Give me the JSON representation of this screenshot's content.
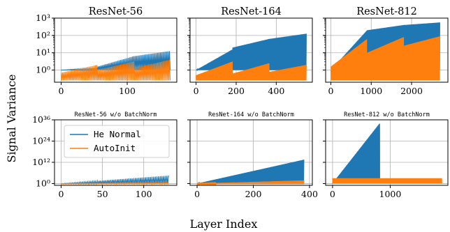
{
  "figure": {
    "ylabel": "Signal Variance",
    "xlabel": "Layer Index"
  },
  "legend": {
    "entries": [
      {
        "label": "He Normal",
        "color": "#1f77b4"
      },
      {
        "label": "AutoInit",
        "color": "#ff7f0e"
      }
    ]
  },
  "colors": {
    "he_normal": "#1f77b4",
    "autoinit": "#ff7f0e",
    "grid": "#b0b0b0"
  },
  "chart_data": [
    {
      "type": "line",
      "title": "ResNet-56",
      "yscale": "log",
      "xlim": [
        -10,
        175
      ],
      "ylim_exp": [
        -0.7,
        3
      ],
      "xticks": [
        0,
        100
      ],
      "yticks": [
        {
          "exp": 0,
          "label": "10⁰"
        },
        {
          "exp": 1,
          "label": "10¹"
        },
        {
          "exp": 2,
          "label": "10²"
        },
        {
          "exp": 3,
          "label": "10³"
        }
      ],
      "series": [
        {
          "name": "He Normal",
          "layers": 165,
          "stages": [
            [
              0,
              55,
              0.0,
              0.15
            ],
            [
              55,
              110,
              0.2,
              0.8
            ],
            [
              110,
              165,
              0.8,
              1.1
            ]
          ],
          "floor_exp": 0.0,
          "period": 3
        },
        {
          "name": "AutoInit",
          "layers": 165,
          "stages": [
            [
              0,
              55,
              -0.15,
              0.3
            ],
            [
              55,
              110,
              0.0,
              0.5
            ],
            [
              110,
              165,
              0.1,
              0.6
            ]
          ],
          "floor_exp": -0.6,
          "period": 3
        }
      ]
    },
    {
      "type": "line",
      "title": "ResNet-164",
      "yscale": "log",
      "xlim": [
        -30,
        580
      ],
      "ylim_exp": [
        -0.7,
        3
      ],
      "xticks": [
        0,
        200,
        400
      ],
      "yticks": [
        {
          "exp": 0,
          "label": ""
        },
        {
          "exp": 1,
          "label": ""
        },
        {
          "exp": 2,
          "label": ""
        },
        {
          "exp": 3,
          "label": ""
        }
      ],
      "series": [
        {
          "name": "He Normal",
          "layers": 550,
          "stages": [
            [
              0,
              183,
              0.0,
              1.2
            ],
            [
              183,
              366,
              1.3,
              1.8
            ],
            [
              366,
              550,
              1.8,
              2.1
            ]
          ],
          "floor_exp": 0.0,
          "period": 6
        },
        {
          "name": "AutoInit",
          "layers": 550,
          "stages": [
            [
              0,
              183,
              -0.3,
              0.5
            ],
            [
              183,
              366,
              -0.2,
              0.4
            ],
            [
              366,
              550,
              -0.1,
              0.3
            ]
          ],
          "floor_exp": -0.6,
          "period": 6
        }
      ]
    },
    {
      "type": "line",
      "title": "ResNet-812",
      "yscale": "log",
      "xlim": [
        -130,
        2900
      ],
      "ylim_exp": [
        -0.7,
        3
      ],
      "xticks": [
        0,
        1000,
        2000
      ],
      "yticks": [
        {
          "exp": 0,
          "label": ""
        },
        {
          "exp": 1,
          "label": ""
        },
        {
          "exp": 2,
          "label": ""
        },
        {
          "exp": 3,
          "label": ""
        }
      ],
      "series": [
        {
          "name": "He Normal",
          "layers": 2700,
          "stages": [
            [
              0,
              900,
              0.0,
              2.3
            ],
            [
              900,
              1800,
              2.3,
              2.6
            ],
            [
              1800,
              2700,
              2.6,
              2.75
            ]
          ],
          "floor_exp": 0.0,
          "period": 6
        },
        {
          "name": "AutoInit",
          "layers": 2700,
          "stages": [
            [
              0,
              900,
              0.2,
              1.8
            ],
            [
              900,
              1800,
              1.0,
              1.9
            ],
            [
              1800,
              2700,
              1.4,
              1.95
            ]
          ],
          "floor_exp": -0.6,
          "period": 6
        }
      ]
    },
    {
      "type": "line",
      "title": "ResNet-56 w/o BatchNorm",
      "yscale": "log",
      "xlim": [
        -8,
        140
      ],
      "ylim_exp": [
        -1,
        36
      ],
      "xticks": [
        0,
        50,
        100
      ],
      "yticks": [
        {
          "exp": 0,
          "label": "10⁰"
        },
        {
          "exp": 12,
          "label": "10¹²"
        },
        {
          "exp": 24,
          "label": "10²⁴"
        },
        {
          "exp": 36,
          "label": "10³⁶"
        }
      ],
      "series": [
        {
          "name": "He Normal",
          "layers": 130,
          "stages": [
            [
              0,
              130,
              0.0,
              4.5
            ]
          ],
          "floor_exp": -0.3,
          "period": 2
        },
        {
          "name": "AutoInit",
          "layers": 130,
          "stages": [
            [
              0,
              130,
              0.0,
              0.8
            ]
          ],
          "floor_exp": -0.3,
          "period": 2
        }
      ]
    },
    {
      "type": "line",
      "title": "ResNet-164 w/o BatchNorm",
      "yscale": "log",
      "xlim": [
        -25,
        410
      ],
      "ylim_exp": [
        -1,
        36
      ],
      "xticks": [
        0,
        200,
        400
      ],
      "yticks": [
        {
          "exp": 0,
          "label": ""
        },
        {
          "exp": 12,
          "label": ""
        },
        {
          "exp": 24,
          "label": ""
        },
        {
          "exp": 36,
          "label": ""
        }
      ],
      "series": [
        {
          "name": "He Normal",
          "layers": 380,
          "stages": [
            [
              0,
              380,
              0.0,
              13.5
            ]
          ],
          "floor_exp": -0.3,
          "period": 2
        },
        {
          "name": "AutoInit",
          "layers": 380,
          "stages": [
            [
              0,
              380,
              0.0,
              1.8
            ]
          ],
          "floor_exp": -0.3,
          "period": 2
        }
      ]
    },
    {
      "type": "line",
      "title": "ResNet-812 w/o BatchNorm",
      "yscale": "log",
      "xlim": [
        -120,
        2000
      ],
      "ylim_exp": [
        -1,
        36
      ],
      "xticks": [
        0,
        1000
      ],
      "yticks": [
        {
          "exp": 0,
          "label": ""
        },
        {
          "exp": 12,
          "label": ""
        },
        {
          "exp": 24,
          "label": ""
        },
        {
          "exp": 36,
          "label": ""
        }
      ],
      "series": [
        {
          "name": "He Normal",
          "layers": 820,
          "stages": [
            [
              0,
              820,
              0.0,
              34.0
            ]
          ],
          "floor_exp": 1.0,
          "period": 2
        },
        {
          "name": "AutoInit",
          "layers": 1900,
          "stages": [
            [
              0,
              1900,
              3.0,
              3.0
            ]
          ],
          "floor_exp": 0.0,
          "period": 2
        }
      ]
    }
  ]
}
